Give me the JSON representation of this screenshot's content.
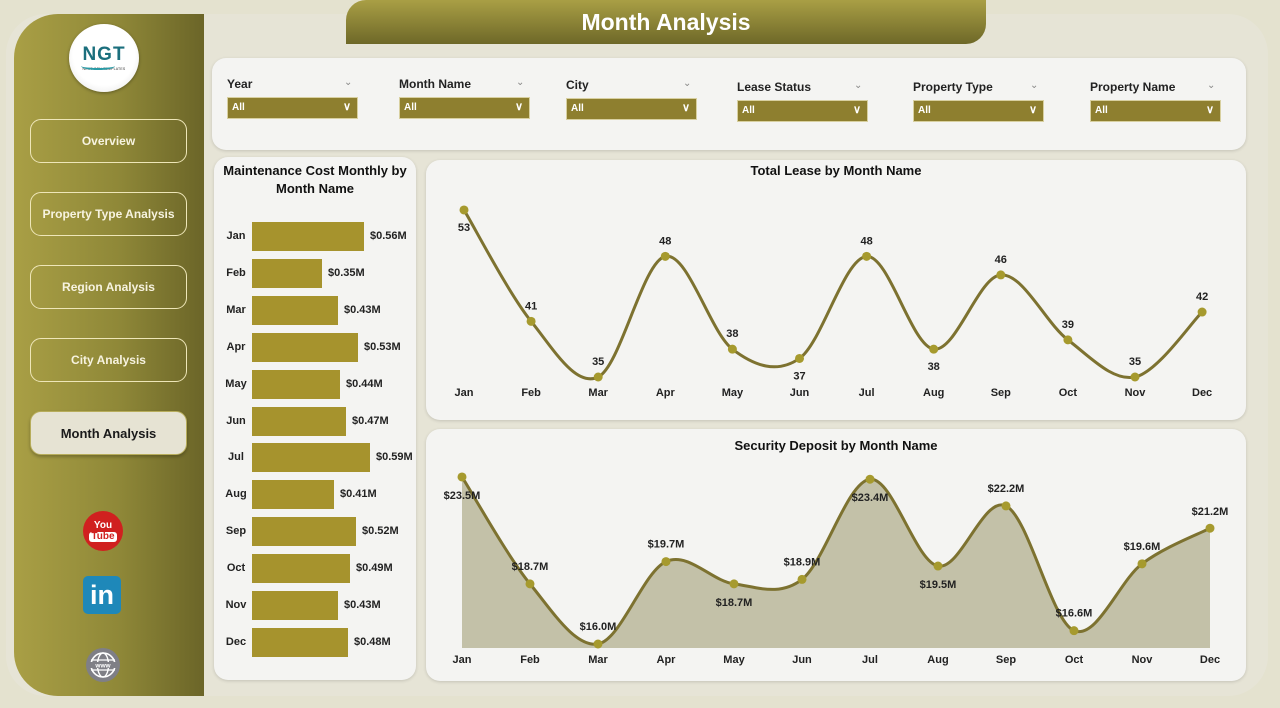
{
  "header": {
    "title": "Month Analysis"
  },
  "logo": {
    "main": "NGT",
    "sub": "NEXT GEN TEMPLATES"
  },
  "sidebar": {
    "items": [
      {
        "label": "Overview",
        "active": false
      },
      {
        "label": "Property Type Analysis",
        "active": false
      },
      {
        "label": "Region Analysis",
        "active": false
      },
      {
        "label": "City Analysis",
        "active": false
      },
      {
        "label": "Month Analysis",
        "active": true
      }
    ],
    "social": [
      {
        "icon": "youtube-icon",
        "top": "You",
        "bottom": "Tube"
      },
      {
        "icon": "linkedin-icon",
        "text": "in"
      },
      {
        "icon": "website-globe-icon",
        "text": "www"
      }
    ]
  },
  "filters": [
    {
      "label": "Year",
      "value": "All"
    },
    {
      "label": "Month Name",
      "value": "All"
    },
    {
      "label": "City",
      "value": "All"
    },
    {
      "label": "Lease Status",
      "value": "All"
    },
    {
      "label": "Property Type",
      "value": "All"
    },
    {
      "label": "Property Name",
      "value": "All"
    }
  ],
  "colors": {
    "accent": "#8e7f2f",
    "bar": "#a6932d",
    "line": "#7d7230",
    "marker": "#a69a2e",
    "area": "#c3c1a8",
    "sidebar": "#8f8838"
  },
  "chart_data": [
    {
      "type": "bar",
      "orientation": "horizontal",
      "title": "Maintenance Cost Monthly by Month Name",
      "categories": [
        "Jan",
        "Feb",
        "Mar",
        "Apr",
        "May",
        "Jun",
        "Jul",
        "Aug",
        "Sep",
        "Oct",
        "Nov",
        "Dec"
      ],
      "values": [
        0.56,
        0.35,
        0.43,
        0.53,
        0.44,
        0.47,
        0.59,
        0.41,
        0.52,
        0.49,
        0.43,
        0.48
      ],
      "labels": [
        "$0.56M",
        "$0.35M",
        "$0.43M",
        "$0.53M",
        "$0.44M",
        "$0.47M",
        "$0.59M",
        "$0.41M",
        "$0.52M",
        "$0.49M",
        "$0.43M",
        "$0.48M"
      ],
      "unit": "$M",
      "grid": false
    },
    {
      "type": "line",
      "title": "Total Lease by Month Name",
      "categories": [
        "Jan",
        "Feb",
        "Mar",
        "Apr",
        "May",
        "Jun",
        "Jul",
        "Aug",
        "Sep",
        "Oct",
        "Nov",
        "Dec"
      ],
      "values": [
        53,
        41,
        35,
        48,
        38,
        37,
        48,
        38,
        46,
        39,
        35,
        42
      ],
      "labels": [
        "53",
        "41",
        "35",
        "48",
        "38",
        "37",
        "48",
        "38",
        "46",
        "39",
        "35",
        "42"
      ],
      "smooth": true,
      "grid": false
    },
    {
      "type": "area",
      "title": "Security Deposit by Month Name",
      "categories": [
        "Jan",
        "Feb",
        "Mar",
        "Apr",
        "May",
        "Jun",
        "Jul",
        "Aug",
        "Sep",
        "Oct",
        "Nov",
        "Dec"
      ],
      "values": [
        23.5,
        18.7,
        16.0,
        19.7,
        18.7,
        18.9,
        23.4,
        19.5,
        22.2,
        16.6,
        19.6,
        21.2
      ],
      "labels": [
        "$23.5M",
        "$18.7M",
        "$16.0M",
        "$19.7M",
        "$18.7M",
        "$18.9M",
        "$23.4M",
        "$19.5M",
        "$22.2M",
        "$16.6M",
        "$19.6M",
        "$21.2M"
      ],
      "unit": "$M",
      "smooth": true,
      "grid": false
    }
  ]
}
